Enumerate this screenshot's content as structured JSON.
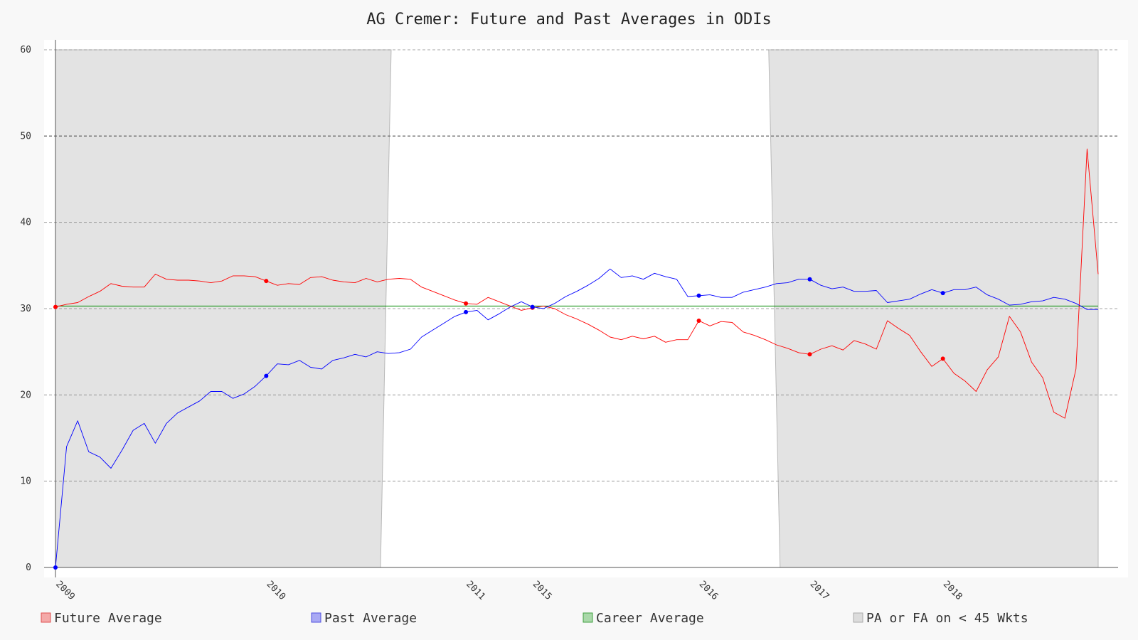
{
  "chart_data": {
    "type": "line",
    "title": "AG Cremer: Future and Past Averages in ODIs",
    "xlabel": "",
    "ylabel": "",
    "ylim": [
      0,
      60
    ],
    "y_ticks": [
      0,
      10,
      20,
      30,
      40,
      50,
      60
    ],
    "x_ticks": [
      {
        "label": "2009",
        "index": 0
      },
      {
        "label": "2010",
        "index": 19
      },
      {
        "label": "2011",
        "index": 37
      },
      {
        "label": "2015",
        "index": 43
      },
      {
        "label": "2016",
        "index": 58
      },
      {
        "label": "2017",
        "index": 68
      },
      {
        "label": "2018",
        "index": 80
      }
    ],
    "num_points": 95,
    "career_average": 30.3,
    "series": [
      {
        "name": "Future Average",
        "color": "#ff0000",
        "legend_fill": "#f4a9a8",
        "values": [
          30.2,
          30.5,
          30.7,
          31.4,
          32.0,
          32.9,
          32.6,
          32.5,
          32.5,
          34.0,
          33.4,
          33.3,
          33.3,
          33.2,
          33.0,
          33.2,
          33.8,
          33.8,
          33.7,
          33.2,
          32.7,
          32.9,
          32.8,
          33.6,
          33.7,
          33.3,
          33.1,
          33.0,
          33.5,
          33.1,
          33.4,
          33.5,
          33.4,
          32.5,
          32.0,
          31.5,
          31.0,
          30.6,
          30.5,
          31.3,
          30.8,
          30.3,
          29.8,
          30.1,
          30.3,
          30.0,
          29.3,
          28.8,
          28.2,
          27.5,
          26.7,
          26.4,
          26.8,
          26.5,
          26.8,
          26.1,
          26.4,
          26.4,
          28.6,
          28.0,
          28.5,
          28.4,
          27.3,
          26.9,
          26.4,
          25.8,
          25.4,
          24.9,
          24.7,
          25.3,
          25.7,
          25.2,
          26.3,
          25.9,
          25.3,
          28.6,
          27.7,
          26.9,
          25.0,
          23.3,
          24.2,
          22.5,
          21.6,
          20.4,
          22.9,
          24.4,
          29.1,
          27.3,
          23.8,
          22.0,
          18.0,
          17.3,
          23.0,
          48.5,
          34.0
        ]
      },
      {
        "name": "Past Average",
        "color": "#0000ff",
        "legend_fill": "#a9a9f4",
        "values": [
          0.0,
          14.0,
          17.0,
          13.4,
          12.8,
          11.5,
          13.6,
          15.9,
          16.7,
          14.4,
          16.7,
          17.9,
          18.6,
          19.3,
          20.4,
          20.4,
          19.6,
          20.1,
          21.0,
          22.2,
          23.6,
          23.5,
          24.0,
          23.2,
          23.0,
          24.0,
          24.3,
          24.7,
          24.4,
          25.0,
          24.8,
          24.9,
          25.3,
          26.7,
          27.5,
          28.3,
          29.1,
          29.6,
          29.8,
          28.7,
          29.4,
          30.2,
          30.8,
          30.2,
          30.0,
          30.6,
          31.4,
          32.0,
          32.7,
          33.5,
          34.6,
          33.6,
          33.8,
          33.4,
          34.1,
          33.7,
          33.4,
          31.4,
          31.5,
          31.6,
          31.3,
          31.3,
          31.9,
          32.2,
          32.5,
          32.9,
          33.0,
          33.4,
          33.4,
          32.7,
          32.3,
          32.5,
          32.0,
          32.0,
          32.1,
          30.7,
          30.9,
          31.1,
          31.7,
          32.2,
          31.8,
          32.2,
          32.2,
          32.5,
          31.6,
          31.1,
          30.4,
          30.5,
          30.8,
          30.9,
          31.3,
          31.1,
          30.6,
          29.9,
          29.9
        ]
      }
    ],
    "highlight_indices": [
      0,
      19,
      37,
      43,
      58,
      68,
      80
    ],
    "shaded_regions": [
      {
        "start": 0,
        "end": 29.3
      },
      {
        "start": 64.3,
        "end": 94
      }
    ],
    "legend": [
      {
        "label": "Future Average",
        "fill": "#f4a9a8",
        "stroke": "#e05050"
      },
      {
        "label": "Past Average",
        "fill": "#a9a9f4",
        "stroke": "#5050e0"
      },
      {
        "label": "Career Average",
        "fill": "#a9d8a9",
        "stroke": "#40a040"
      },
      {
        "label": "PA or FA on < 45 Wkts",
        "fill": "#dcdcdc",
        "stroke": "#aaaaaa"
      }
    ],
    "colors": {
      "future": "#ff0000",
      "past": "#0000ff",
      "career": "#008800",
      "shade": "#e3e3e3",
      "grid": "#888888"
    }
  }
}
